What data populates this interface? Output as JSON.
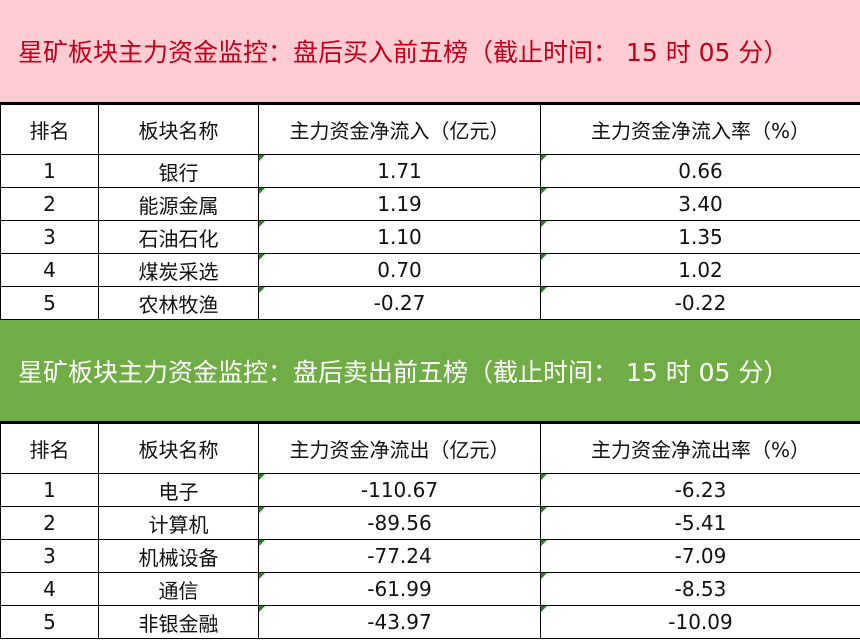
{
  "buy": {
    "title": "星矿板块主力资金监控：盘后买入前五榜（截止时间： 15 时 05 分）",
    "headers": [
      "排名",
      "板块名称",
      "主力资金净流入（亿元）",
      "主力资金净流入率（%）"
    ],
    "rows": [
      [
        "1",
        "银行",
        "1.71",
        "0.66"
      ],
      [
        "2",
        "能源金属",
        "1.19",
        "3.40"
      ],
      [
        "3",
        "石油石化",
        "1.10",
        "1.35"
      ],
      [
        "4",
        "煤炭采选",
        "0.70",
        "1.02"
      ],
      [
        "5",
        "农林牧渔",
        "-0.27",
        "-0.22"
      ]
    ]
  },
  "sell": {
    "title": "星矿板块主力资金监控：盘后卖出前五榜（截止时间： 15 时 05 分）",
    "headers": [
      "排名",
      "板块名称",
      "主力资金净流出（亿元）",
      "主力资金净流出率（%）"
    ],
    "rows": [
      [
        "1",
        "电子",
        "-110.67",
        "-6.23"
      ],
      [
        "2",
        "计算机",
        "-89.56",
        "-5.41"
      ],
      [
        "3",
        "机械设备",
        "-77.24",
        "-7.09"
      ],
      [
        "4",
        "通信",
        "-61.99",
        "-8.53"
      ],
      [
        "5",
        "非银金融",
        "-43.97",
        "-10.09"
      ]
    ]
  },
  "colors": {
    "buy_band": "#FFCCD3",
    "buy_text": "#C0001A",
    "sell_band": "#70AD47"
  }
}
